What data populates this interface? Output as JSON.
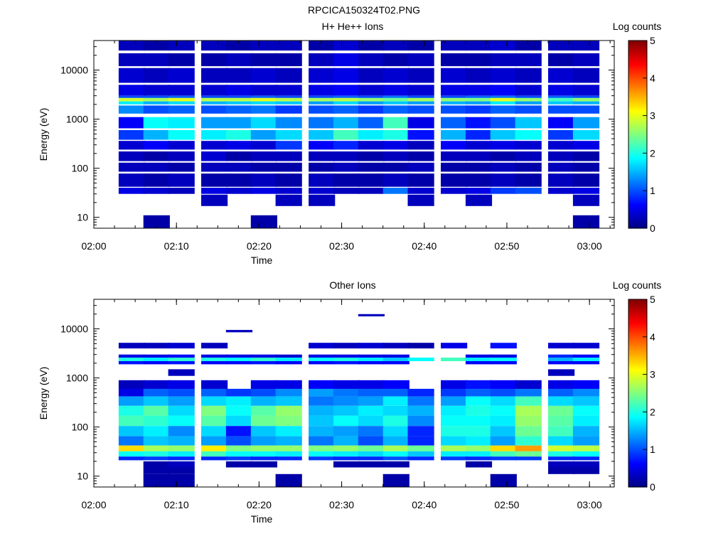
{
  "figure_title": "RPCICA150324T02.PNG",
  "chart_data": [
    {
      "type": "heatmap",
      "title": "H+ He++ Ions",
      "xlabel": "Time",
      "ylabel": "Energy (eV)",
      "y_scale": "log",
      "ylim": [
        6,
        40000
      ],
      "xlim": [
        "02:00",
        "03:03"
      ],
      "x_ticks": [
        "02:00",
        "02:10",
        "02:20",
        "02:30",
        "02:40",
        "02:50",
        "03:00"
      ],
      "y_ticks": [
        "10",
        "100",
        "1000",
        "10000"
      ],
      "colorbar": {
        "label": "Log counts",
        "ticks": [
          "0",
          "1",
          "2",
          "3",
          "4",
          "5"
        ],
        "range": [
          0,
          5
        ],
        "colormap": "jet"
      },
      "time_bins": [
        "02:03",
        "02:06",
        "02:09",
        "02:13",
        "02:16",
        "02:19",
        "02:22",
        "02:26",
        "02:29",
        "02:32",
        "02:35",
        "02:38",
        "02:42",
        "02:45",
        "02:48",
        "02:51",
        "02:55",
        "02:58"
      ],
      "bands": [
        {
          "e": [
            25000,
            40000
          ],
          "v": [
            0.3,
            0.2,
            0.3,
            0.3,
            0.2,
            0.3,
            0.3,
            0.2,
            0.4,
            0.2,
            0.3,
            0.2,
            0.3,
            0.3,
            0.4,
            0.2,
            0.3,
            0.3
          ]
        },
        {
          "e": [
            12000,
            22000
          ],
          "v": [
            0.3,
            0.3,
            0.2,
            0.2,
            0.3,
            0.2,
            0.2,
            0.3,
            0.5,
            0.3,
            0.2,
            0.3,
            0.2,
            0.2,
            0.3,
            0.3,
            0.2,
            0.3
          ]
        },
        {
          "e": [
            5500,
            11000
          ],
          "v": [
            0.4,
            0.3,
            0.4,
            0.3,
            0.3,
            0.4,
            0.3,
            0.4,
            0.5,
            0.3,
            0.4,
            0.3,
            0.4,
            0.3,
            0.4,
            0.3,
            0.4,
            0.3
          ]
        },
        {
          "e": [
            3000,
            5000
          ],
          "v": [
            0.5,
            0.4,
            0.4,
            0.4,
            0.5,
            0.4,
            0.4,
            0.5,
            0.6,
            0.4,
            0.5,
            0.4,
            0.5,
            0.5,
            0.6,
            0.4,
            0.5,
            0.4
          ]
        },
        {
          "e": [
            2700,
            3000
          ],
          "v": [
            1.0,
            1.0,
            1.1,
            1.0,
            1.0,
            1.1,
            1.0,
            1.0,
            1.1,
            1.0,
            1.2,
            1.0,
            1.0,
            1.1,
            1.2,
            1.0,
            1.1,
            1.0
          ]
        },
        {
          "e": [
            2300,
            2700
          ],
          "v": [
            2.9,
            2.7,
            3.0,
            2.8,
            2.8,
            3.0,
            2.8,
            2.7,
            2.8,
            2.6,
            2.4,
            2.7,
            2.6,
            2.5,
            3.0,
            2.6,
            2.2,
            2.6
          ]
        },
        {
          "e": [
            2000,
            2300
          ],
          "v": [
            1.8,
            1.5,
            1.7,
            1.5,
            1.6,
            1.7,
            1.6,
            1.4,
            1.7,
            1.4,
            1.6,
            1.4,
            1.5,
            1.4,
            1.8,
            1.4,
            1.6,
            1.5
          ]
        },
        {
          "e": [
            1300,
            1900
          ],
          "v": [
            1.3,
            1.0,
            1.1,
            1.0,
            1.1,
            1.2,
            0.9,
            1.0,
            1.1,
            0.9,
            1.1,
            1.0,
            1.0,
            0.9,
            1.1,
            1.0,
            1.0,
            1.0
          ]
        },
        {
          "e": [
            650,
            1100
          ],
          "v": [
            0.6,
            1.9,
            1.8,
            1.4,
            1.4,
            1.7,
            1.3,
            1.2,
            1.5,
            1.1,
            2.2,
            0.5,
            1.1,
            0.7,
            1.0,
            1.6,
            0.6,
            1.4
          ]
        },
        {
          "e": [
            380,
            600
          ],
          "v": [
            0.9,
            1.5,
            1.9,
            1.8,
            2.0,
            1.4,
            1.7,
            1.6,
            2.2,
            1.8,
            2.0,
            0.7,
            1.5,
            0.8,
            1.6,
            1.9,
            0.9,
            1.7
          ]
        },
        {
          "e": [
            240,
            360
          ],
          "v": [
            0.4,
            0.6,
            0.4,
            0.4,
            0.5,
            0.4,
            0.9,
            0.6,
            0.8,
            0.4,
            0.5,
            0.3,
            0.6,
            0.4,
            0.5,
            0.4,
            0.4,
            0.5
          ]
        },
        {
          "e": [
            140,
            220
          ],
          "v": [
            0.3,
            0.2,
            0.3,
            0.4,
            0.2,
            0.3,
            0.3,
            0.3,
            0.3,
            0.2,
            0.3,
            0.2,
            0.3,
            0.3,
            0.2,
            0.3,
            0.3,
            0.2
          ]
        },
        {
          "e": [
            85,
            130
          ],
          "v": [
            0.3,
            0.3,
            0.2,
            0.3,
            0.3,
            0.2,
            0.2,
            0.2,
            0.3,
            0.2,
            0.2,
            0.3,
            0.2,
            0.2,
            0.3,
            0.2,
            0.3,
            0.2
          ]
        },
        {
          "e": [
            42,
            78
          ],
          "v": [
            0.3,
            0.2,
            0.3,
            0.2,
            0.2,
            0.3,
            0.2,
            0.3,
            0.2,
            0.2,
            0.3,
            0.2,
            0.2,
            0.2,
            0.3,
            0.2,
            0.3,
            0.2
          ]
        },
        {
          "e": [
            30,
            40
          ],
          "v": [
            0.5,
            0.4,
            0.3,
            0.5,
            0.4,
            0.5,
            0.4,
            0.4,
            0.3,
            0.3,
            1.2,
            0.4,
            0.4,
            0.5,
            0.9,
            1.0,
            0.4,
            0.5
          ]
        },
        {
          "e": [
            17,
            29
          ],
          "v": [
            null,
            null,
            null,
            0.3,
            null,
            null,
            0.3,
            0.3,
            null,
            null,
            null,
            0.3,
            null,
            0.3,
            null,
            null,
            null,
            0.3
          ]
        },
        {
          "e": [
            6,
            11
          ],
          "v": [
            null,
            0.2,
            null,
            null,
            null,
            0.2,
            null,
            null,
            null,
            null,
            null,
            null,
            null,
            null,
            null,
            null,
            null,
            0.2
          ]
        }
      ]
    },
    {
      "type": "heatmap",
      "title": "Other Ions",
      "xlabel": "Time",
      "ylabel": "Energy (eV)",
      "y_scale": "log",
      "ylim": [
        6,
        40000
      ],
      "xlim": [
        "02:00",
        "03:03"
      ],
      "x_ticks": [
        "02:00",
        "02:10",
        "02:20",
        "02:30",
        "02:40",
        "02:50",
        "03:00"
      ],
      "y_ticks": [
        "10",
        "100",
        "1000",
        "10000"
      ],
      "colorbar": {
        "label": "Log counts",
        "ticks": [
          "0",
          "1",
          "2",
          "3",
          "4",
          "5"
        ],
        "range": [
          0,
          5
        ],
        "colormap": "jet"
      },
      "time_bins": [
        "02:03",
        "02:06",
        "02:09",
        "02:13",
        "02:16",
        "02:19",
        "02:22",
        "02:26",
        "02:29",
        "02:32",
        "02:35",
        "02:38",
        "02:42",
        "02:45",
        "02:48",
        "02:51",
        "02:55",
        "02:58"
      ],
      "bands": [
        {
          "e": [
            18000,
            20000
          ],
          "v": [
            null,
            null,
            null,
            null,
            null,
            null,
            null,
            null,
            null,
            0.3,
            null,
            null,
            null,
            null,
            null,
            null,
            null,
            null
          ]
        },
        {
          "e": [
            8500,
            9500
          ],
          "v": [
            null,
            null,
            null,
            null,
            0.3,
            null,
            null,
            null,
            null,
            null,
            null,
            null,
            null,
            null,
            null,
            null,
            null,
            null
          ]
        },
        {
          "e": [
            4000,
            5200
          ],
          "v": [
            0.3,
            0.3,
            0.4,
            0.3,
            null,
            null,
            null,
            0.4,
            0.3,
            0.4,
            0.3,
            0.2,
            0.5,
            null,
            0.7,
            null,
            0.4,
            0.4
          ]
        },
        {
          "e": [
            2600,
            3000
          ],
          "v": [
            0.5,
            0.5,
            0.6,
            0.5,
            0.5,
            0.5,
            0.4,
            0.5,
            0.5,
            0.5,
            0.5,
            null,
            null,
            0.5,
            0.5,
            null,
            0.8,
            0.6
          ]
        },
        {
          "e": [
            2200,
            2600
          ],
          "v": [
            2.0,
            1.8,
            2.1,
            2.0,
            1.9,
            2.1,
            1.8,
            1.9,
            2.0,
            1.8,
            1.6,
            1.9,
            2.2,
            1.8,
            1.9,
            null,
            1.5,
            1.8
          ]
        },
        {
          "e": [
            1900,
            2200
          ],
          "v": [
            0.7,
            0.6,
            0.7,
            0.6,
            0.6,
            0.7,
            0.6,
            0.6,
            0.7,
            0.6,
            0.6,
            null,
            null,
            0.6,
            0.6,
            null,
            0.6,
            0.6
          ]
        },
        {
          "e": [
            1100,
            1500
          ],
          "v": [
            null,
            null,
            0.3,
            null,
            null,
            null,
            null,
            null,
            null,
            null,
            null,
            null,
            null,
            null,
            null,
            null,
            0.3,
            null
          ]
        },
        {
          "e": [
            600,
            900
          ],
          "v": [
            0.3,
            0.4,
            0.5,
            0.4,
            null,
            0.5,
            0.5,
            0.6,
            0.5,
            0.5,
            0.6,
            null,
            0.5,
            0.7,
            0.6,
            0.4,
            0.5,
            0.6
          ]
        },
        {
          "e": [
            420,
            600
          ],
          "v": [
            0.5,
            1.1,
            1.0,
            1.1,
            0.9,
            1.0,
            1.3,
            1.4,
            1.2,
            1.1,
            1.1,
            0.8,
            0.9,
            1.1,
            1.0,
            1.2,
            1.1,
            1.3
          ]
        },
        {
          "e": [
            270,
            420
          ],
          "v": [
            1.4,
            1.6,
            1.4,
            1.7,
            1.8,
            1.5,
            1.6,
            1.2,
            1.3,
            1.4,
            1.8,
            1.2,
            1.4,
            1.9,
            1.7,
            2.2,
            1.7,
            1.6
          ]
        },
        {
          "e": [
            170,
            270
          ],
          "v": [
            2.0,
            2.3,
            1.7,
            2.5,
            1.9,
            2.3,
            2.6,
            1.5,
            1.6,
            1.8,
            1.7,
            1.5,
            1.8,
            2.0,
            1.9,
            2.7,
            2.4,
            1.9
          ]
        },
        {
          "e": [
            105,
            170
          ],
          "v": [
            2.2,
            2.1,
            1.9,
            2.3,
            1.7,
            2.4,
            2.5,
            1.6,
            1.9,
            1.7,
            2.0,
            1.3,
            1.9,
            1.9,
            1.8,
            2.6,
            2.3,
            1.8
          ]
        },
        {
          "e": [
            65,
            105
          ],
          "v": [
            1.6,
            1.8,
            1.3,
            1.7,
            0.7,
            1.6,
            1.8,
            1.5,
            1.4,
            1.2,
            1.7,
            0.8,
            2.0,
            2.0,
            1.6,
            2.4,
            2.2,
            1.5
          ]
        },
        {
          "e": [
            42,
            65
          ],
          "v": [
            1.2,
            1.6,
            1.5,
            1.4,
            1.0,
            1.4,
            1.5,
            1.2,
            1.5,
            1.0,
            1.5,
            0.8,
            1.7,
            1.8,
            1.4,
            2.1,
            1.7,
            1.4
          ]
        },
        {
          "e": [
            32,
            42
          ],
          "v": [
            3.3,
            2.7,
            2.6,
            3.2,
            2.5,
            2.6,
            2.6,
            2.5,
            2.6,
            2.4,
            2.7,
            2.4,
            2.7,
            2.6,
            3.3,
            3.6,
            2.9,
            2.8
          ]
        },
        {
          "e": [
            25,
            32
          ],
          "v": [
            1.9,
            2.0,
            1.8,
            2.2,
            1.9,
            1.9,
            1.8,
            1.9,
            1.8,
            1.7,
            1.9,
            1.6,
            1.8,
            1.8,
            2.2,
            2.4,
            2.0,
            1.9
          ]
        },
        {
          "e": [
            21,
            25
          ],
          "v": [
            0.8,
            0.9,
            0.8,
            0.8,
            0.9,
            0.8,
            0.8,
            0.9,
            0.8,
            0.8,
            1.0,
            0.8,
            0.9,
            0.8,
            0.9,
            0.9,
            0.8,
            0.8
          ]
        },
        {
          "e": [
            15,
            20
          ],
          "v": [
            null,
            0.2,
            0.3,
            null,
            0.2,
            0.2,
            null,
            null,
            0.2,
            0.2,
            0.2,
            null,
            null,
            0.2,
            null,
            null,
            0.3,
            0.3
          ]
        },
        {
          "e": [
            11,
            15
          ],
          "v": [
            null,
            0.2,
            0.2,
            null,
            null,
            null,
            null,
            null,
            null,
            null,
            null,
            null,
            null,
            null,
            null,
            null,
            0.2,
            0.2
          ]
        },
        {
          "e": [
            6,
            11
          ],
          "v": [
            null,
            0.2,
            0.2,
            null,
            null,
            null,
            0.2,
            null,
            null,
            null,
            0.2,
            null,
            null,
            null,
            0.2,
            null,
            null,
            null
          ]
        }
      ]
    }
  ]
}
